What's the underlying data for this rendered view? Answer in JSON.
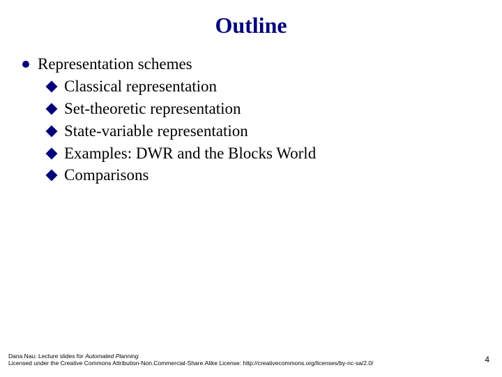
{
  "title": "Outline",
  "title_color": "#00007a",
  "title_fontsize": 32,
  "bullet_color": "#00007a",
  "body_fontsize": 23,
  "main_item": "Representation schemes",
  "sub_items": [
    "Classical representation",
    "Set-theoretic representation",
    "State-variable representation",
    "Examples: DWR and the Blocks World",
    "Comparisons"
  ],
  "footer": {
    "line1_pre": "Dana Nau: Lecture slides for ",
    "line1_italic": "Automated Planning",
    "line2": "Licensed under the Creative Commons Attribution-Non.Commercial-Share.Alike License: http://creativecommons.org/licenses/by-nc-sa/2.0/"
  },
  "page_number": "4"
}
